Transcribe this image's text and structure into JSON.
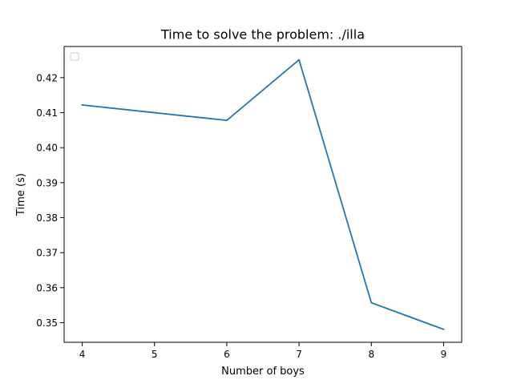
{
  "chart_data": {
    "type": "line",
    "title": "Time to solve the problem: ./illa",
    "xlabel": "Number of boys",
    "ylabel": "Time (s)",
    "x": [
      4,
      6,
      7,
      8,
      9
    ],
    "series": [
      {
        "values": [
          0.4122,
          0.4078,
          0.4251,
          0.3557,
          0.3481
        ],
        "color": "#1f77b4"
      }
    ],
    "xlim": [
      3.75,
      9.25
    ],
    "ylim": [
      0.3444,
      0.4289
    ],
    "xticks": [
      4,
      5,
      6,
      7,
      8,
      9
    ],
    "xtick_labels": [
      "4",
      "5",
      "6",
      "7",
      "8",
      "9"
    ],
    "yticks": [
      0.35,
      0.36,
      0.37,
      0.38,
      0.39,
      0.4,
      0.41,
      0.42
    ],
    "ytick_labels": [
      "0.35",
      "0.36",
      "0.37",
      "0.38",
      "0.39",
      "0.40",
      "0.41",
      "0.42"
    ],
    "grid": false,
    "legend": {
      "location": "upper-left",
      "entries": []
    }
  }
}
